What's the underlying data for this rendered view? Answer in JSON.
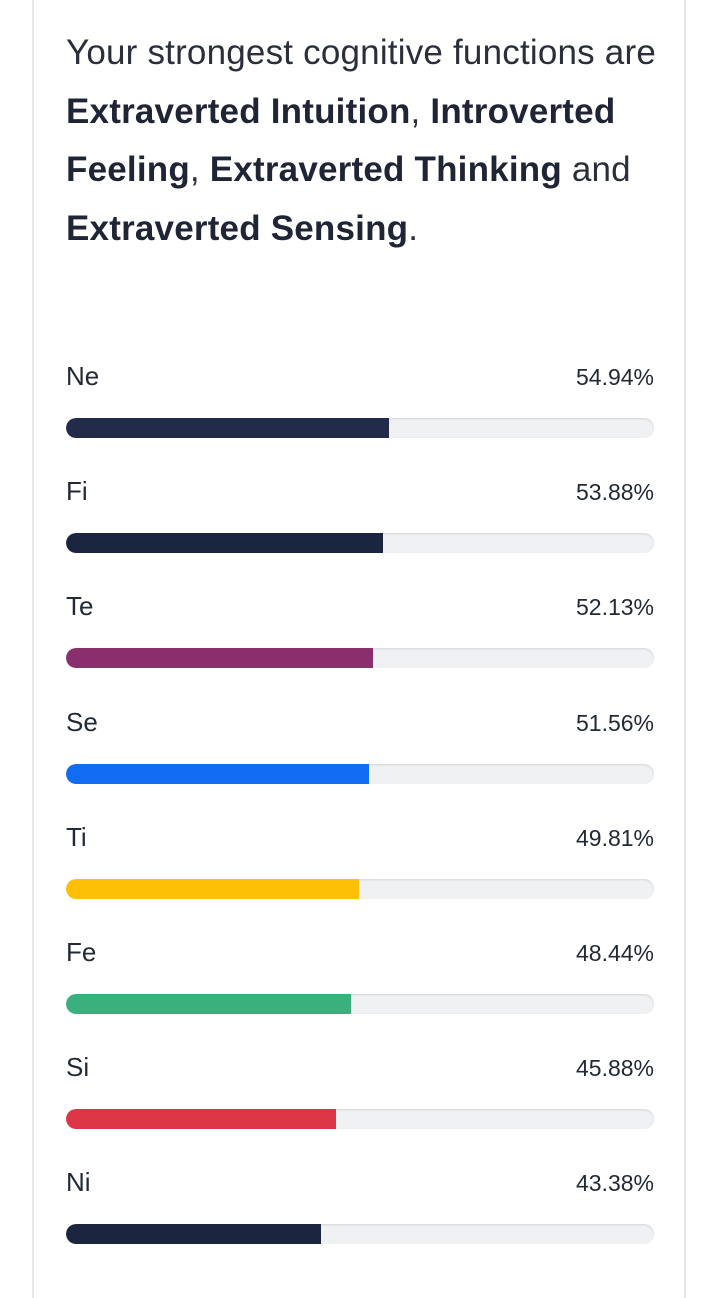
{
  "summary": {
    "prefix": "Your strongest cognitive functions are ",
    "f1": "Extraverted Intuition",
    "sep1": ", ",
    "f2": "Introverted Feeling",
    "sep2": ", ",
    "f3": "Extraverted Thinking",
    "sep3": " and ",
    "f4": "Extraverted Sensing",
    "suffix": "."
  },
  "functions": [
    {
      "label": "Ne",
      "value": 54.94,
      "value_text": "54.94%",
      "color": "#232b4a"
    },
    {
      "label": "Fi",
      "value": 53.88,
      "value_text": "53.88%",
      "color": "#1c2540"
    },
    {
      "label": "Te",
      "value": 52.13,
      "value_text": "52.13%",
      "color": "#8a2f6e"
    },
    {
      "label": "Se",
      "value": 51.56,
      "value_text": "51.56%",
      "color": "#116cf3"
    },
    {
      "label": "Ti",
      "value": 49.81,
      "value_text": "49.81%",
      "color": "#fec006"
    },
    {
      "label": "Fe",
      "value": 48.44,
      "value_text": "48.44%",
      "color": "#3ab07d"
    },
    {
      "label": "Si",
      "value": 45.88,
      "value_text": "45.88%",
      "color": "#dc3545"
    },
    {
      "label": "Ni",
      "value": 43.38,
      "value_text": "43.38%",
      "color": "#1b2540"
    }
  ]
}
